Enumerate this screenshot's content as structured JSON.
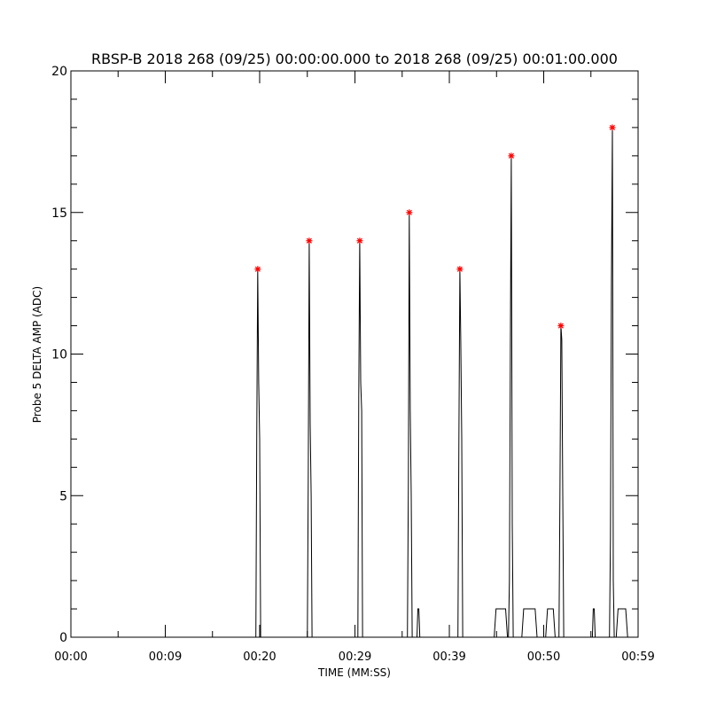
{
  "chart_data": {
    "type": "line",
    "title": "RBSP-B 2018 268 (09/25) 00:00:00.000 to 2018 268 (09/25) 00:01:00.000",
    "xlabel": "TIME (MM:SS)",
    "ylabel": "Probe 5 DELTA AMP (ADC)",
    "xlim": [
      0,
      59.5
    ],
    "ylim": [
      0,
      20
    ],
    "x_ticks": [
      {
        "value": 0,
        "label": "00:00"
      },
      {
        "value": 9.9,
        "label": "00:09"
      },
      {
        "value": 19.8,
        "label": "00:20"
      },
      {
        "value": 29.8,
        "label": "00:29"
      },
      {
        "value": 39.7,
        "label": "00:39"
      },
      {
        "value": 49.6,
        "label": "00:50"
      },
      {
        "value": 59.5,
        "label": "00:59"
      }
    ],
    "y_ticks": [
      {
        "value": 0,
        "label": "0"
      },
      {
        "value": 5,
        "label": "5"
      },
      {
        "value": 10,
        "label": "10"
      },
      {
        "value": 15,
        "label": "15"
      },
      {
        "value": 20,
        "label": "20"
      }
    ],
    "grid": false,
    "series": [
      {
        "type": "line",
        "color": "#000000",
        "x": [
          0,
          19.4,
          19.5,
          19.6,
          19.7,
          19.8,
          19.9,
          20.0,
          24.8,
          24.9,
          25.0,
          25.1,
          25.2,
          25.3,
          30.1,
          30.2,
          30.3,
          30.4,
          30.5,
          30.6,
          35.3,
          35.4,
          35.5,
          35.6,
          35.7,
          35.8,
          36.3,
          36.4,
          36.5,
          36.6,
          40.6,
          40.7,
          40.8,
          40.9,
          41.0,
          41.1,
          44.4,
          44.6,
          45.6,
          45.8,
          45.9,
          46.0,
          46.1,
          46.2,
          46.3,
          46.4,
          47.3,
          47.5,
          48.7,
          48.9,
          49.8,
          50.0,
          50.6,
          50.8,
          51.2,
          51.3,
          51.4,
          51.5,
          51.6,
          51.7,
          54.7,
          54.8,
          54.9,
          55.0,
          56.5,
          56.6,
          56.7,
          56.8,
          56.9,
          57.0,
          57.2,
          57.4,
          58.2,
          58.4,
          59.5
        ],
        "y": [
          0,
          0,
          7,
          13,
          9,
          7,
          0,
          0,
          0,
          5.5,
          14,
          7.5,
          5,
          0,
          0,
          8.5,
          14,
          9,
          8,
          0,
          0,
          5.5,
          15,
          8,
          5,
          0,
          0,
          1,
          1,
          0,
          0,
          7,
          13,
          10.5,
          7,
          0,
          0,
          1,
          1,
          0,
          0,
          2,
          10.5,
          17,
          4,
          0,
          0,
          1,
          1,
          0,
          0,
          1,
          1,
          0,
          0,
          5,
          11,
          10.5,
          5,
          0,
          0,
          1,
          1,
          0,
          0,
          3.5,
          12.5,
          18,
          2,
          0,
          0,
          1,
          1,
          0,
          0
        ]
      },
      {
        "type": "scatter",
        "marker": "asterisk",
        "color": "#ff0000",
        "x": [
          19.6,
          25.0,
          30.3,
          35.5,
          40.8,
          46.2,
          51.4,
          56.8
        ],
        "y": [
          13,
          14,
          14,
          15,
          13,
          17,
          11,
          18
        ]
      }
    ]
  }
}
